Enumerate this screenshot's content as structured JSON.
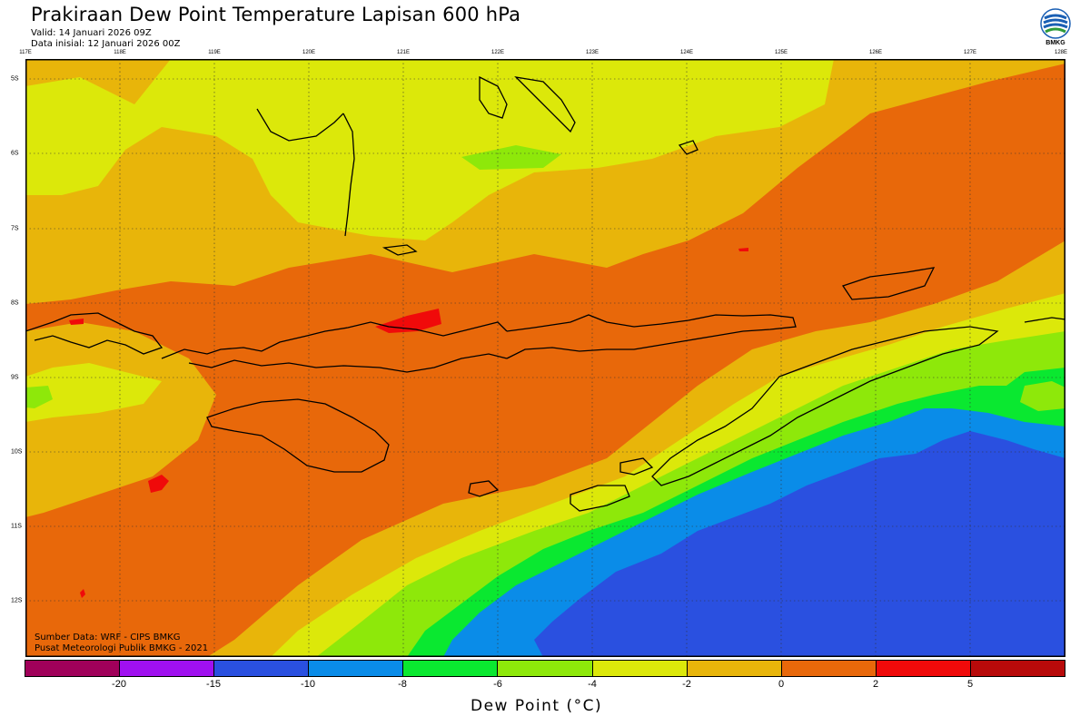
{
  "header": {
    "title": "Prakiraan Dew Point Temperature Lapisan 600 hPa",
    "valid": "Valid: 14 Januari 2026 09Z",
    "init": "Data inisial: 12 Januari 2026 00Z"
  },
  "logo": {
    "text": "BMKG",
    "icon": "bmkg-logo-icon"
  },
  "map": {
    "lon_labels": [
      "117E",
      "118E",
      "119E",
      "120E",
      "121E",
      "122E",
      "123E",
      "124E",
      "125E",
      "126E",
      "127E",
      "128E"
    ],
    "lat_labels": [
      "5S",
      "6S",
      "7S",
      "8S",
      "9S",
      "10S",
      "11S",
      "12S"
    ],
    "grid": true,
    "colors": {
      "warm_orange": "#e8680a",
      "orange_yellow": "#e8b50a",
      "yellow": "#dce80a",
      "yellow_green": "#8ee80a",
      "green": "#0ae830",
      "sky_blue": "#0a8ce8",
      "blue": "#2a50e0",
      "red": "#f00a0a"
    }
  },
  "footer": {
    "source": "Sumber Data: WRF - CIPS BMKG",
    "publisher": "Pusat Meteorologi Publik BMKG - 2021"
  },
  "colorbar": {
    "colors": [
      "#a0005a",
      "#a010f0",
      "#2a50e0",
      "#0a8ce8",
      "#0ae830",
      "#8ee80a",
      "#dce80a",
      "#e8b50a",
      "#e8680a",
      "#f00a0a",
      "#b80a0a"
    ],
    "ticks": [
      "-20",
      "-15",
      "-10",
      "-8",
      "-6",
      "-4",
      "-2",
      "0",
      "2",
      "5"
    ],
    "label": "Dew Point (°C)"
  }
}
